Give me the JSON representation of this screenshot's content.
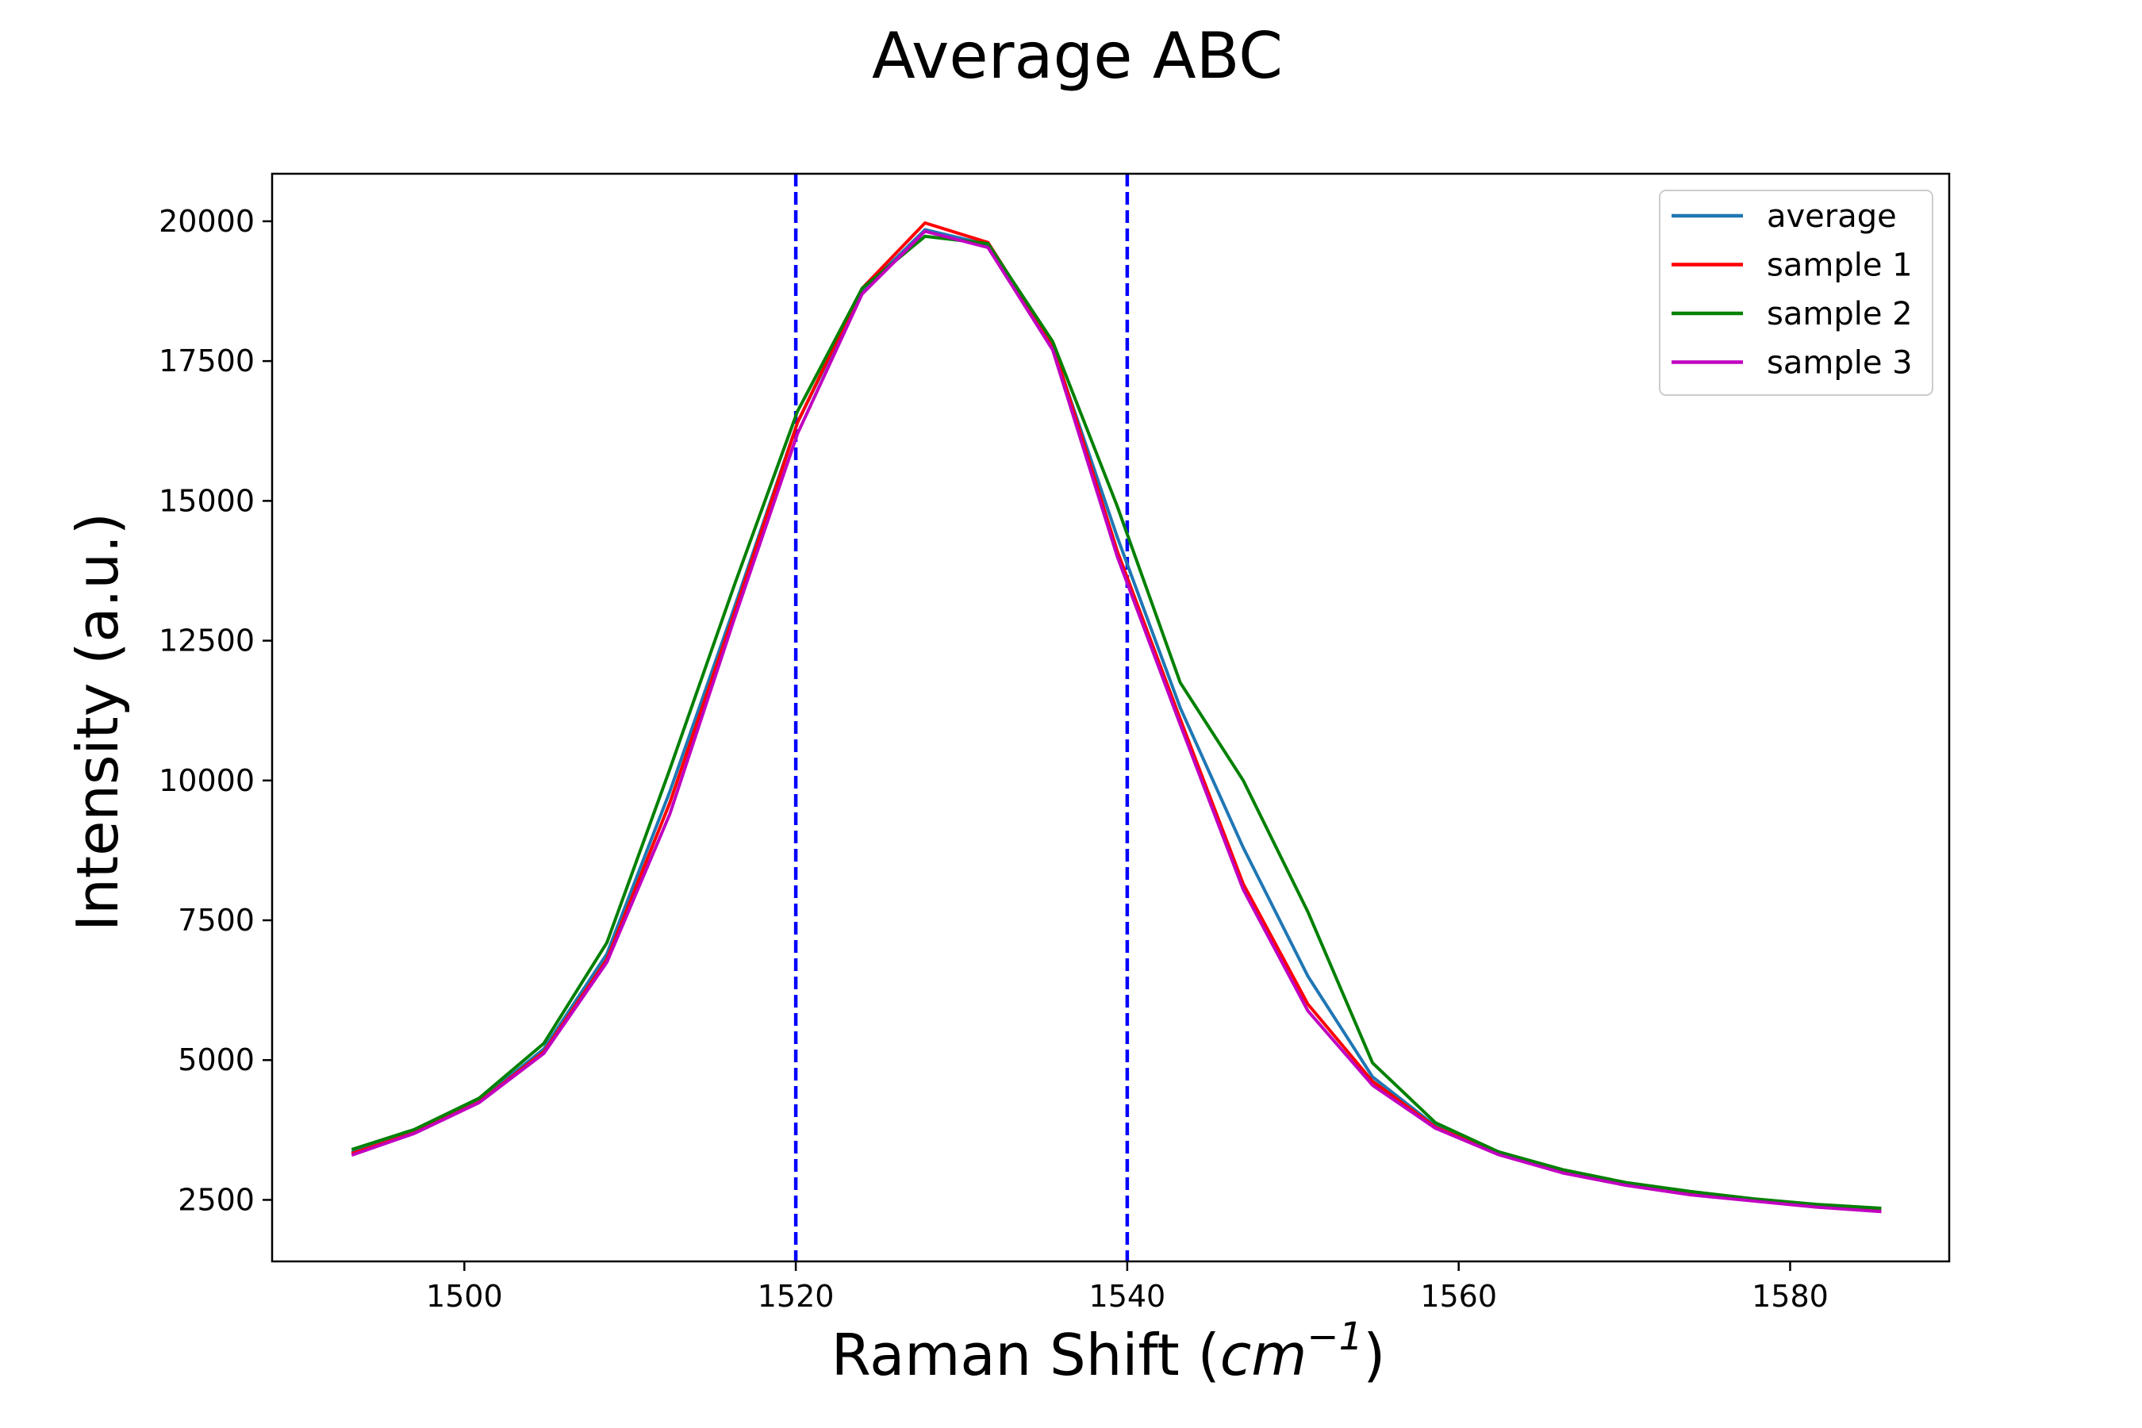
{
  "chart_data": {
    "type": "line",
    "title": "Average ABC",
    "xlabel": "Raman Shift (cm⁻¹)",
    "xlabel_parts": {
      "prefix": "Raman Shift (",
      "base": "cm",
      "sup": "−1",
      "suffix": ")"
    },
    "ylabel": "Intensity (a.u.)",
    "xlim": [
      1488.4,
      1589.6
    ],
    "ylim": [
      1400,
      20850
    ],
    "xticks": [
      1500,
      1520,
      1540,
      1560,
      1580
    ],
    "yticks": [
      2500,
      5000,
      7500,
      10000,
      12500,
      15000,
      17500,
      20000
    ],
    "grid": false,
    "legend_position": "top-right",
    "x": [
      1493.2,
      1497.0,
      1500.9,
      1504.8,
      1508.6,
      1512.4,
      1516.3,
      1520.1,
      1524.0,
      1527.8,
      1531.6,
      1535.5,
      1539.4,
      1543.2,
      1547.0,
      1550.9,
      1554.8,
      1558.6,
      1562.4,
      1566.3,
      1570.1,
      1574.0,
      1577.8,
      1581.6,
      1585.5
    ],
    "series": [
      {
        "name": "average",
        "color": "#1f77b4",
        "values": [
          3350,
          3720,
          4270,
          5200,
          6900,
          9800,
          13100,
          16400,
          18750,
          19850,
          19580,
          17750,
          14350,
          11300,
          8800,
          6500,
          4700,
          3820,
          3340,
          3010,
          2780,
          2620,
          2500,
          2390,
          2320
        ]
      },
      {
        "name": "sample 1",
        "color": "#ff0000",
        "values": [
          3330,
          3700,
          4250,
          5150,
          6800,
          9600,
          13000,
          16400,
          18800,
          19970,
          19620,
          17800,
          14100,
          11100,
          8150,
          6000,
          4620,
          3800,
          3330,
          2990,
          2770,
          2600,
          2490,
          2380,
          2300
        ]
      },
      {
        "name": "sample 2",
        "color": "#008000",
        "values": [
          3400,
          3760,
          4320,
          5300,
          7100,
          10200,
          13500,
          16600,
          18800,
          19730,
          19600,
          17850,
          14900,
          11750,
          10000,
          7650,
          4950,
          3880,
          3360,
          3040,
          2810,
          2650,
          2520,
          2420,
          2350
        ]
      },
      {
        "name": "sample 3",
        "color": "#c000c0",
        "values": [
          3300,
          3690,
          4240,
          5120,
          6750,
          9400,
          12900,
          16200,
          18700,
          19820,
          19530,
          17700,
          14000,
          11000,
          8050,
          5880,
          4550,
          3780,
          3310,
          2980,
          2760,
          2590,
          2480,
          2370,
          2290
        ]
      }
    ],
    "vlines": [
      {
        "x": 1520,
        "color": "#0000ff",
        "style": "dashed"
      },
      {
        "x": 1540,
        "color": "#0000ff",
        "style": "dashed"
      }
    ]
  }
}
